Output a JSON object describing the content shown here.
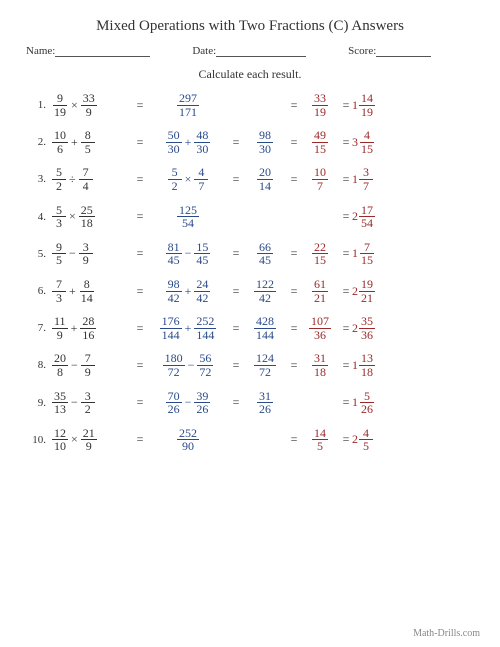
{
  "title": "Mixed Operations with Two Fractions (C) Answers",
  "meta": {
    "name_label": "Name:",
    "date_label": "Date:",
    "score_label": "Score:"
  },
  "instruction": "Calculate each result.",
  "footer": "Math-Drills.com",
  "colors": {
    "work": "#2a4a8a",
    "result": "#9a2a2a"
  },
  "problems": [
    {
      "a": {
        "n": "9",
        "d": "19"
      },
      "op": "×",
      "b": {
        "n": "33",
        "d": "9"
      },
      "w1": {
        "type": "single",
        "f": {
          "n": "297",
          "d": "171"
        }
      },
      "w2": null,
      "simp": {
        "n": "33",
        "d": "19"
      },
      "mix": {
        "w": "1",
        "n": "14",
        "d": "19"
      }
    },
    {
      "a": {
        "n": "10",
        "d": "6"
      },
      "op": "+",
      "b": {
        "n": "8",
        "d": "5"
      },
      "w1": {
        "type": "sum",
        "l": {
          "n": "50",
          "d": "30"
        },
        "op": "+",
        "r": {
          "n": "48",
          "d": "30"
        }
      },
      "w2": {
        "n": "98",
        "d": "30"
      },
      "simp": {
        "n": "49",
        "d": "15"
      },
      "mix": {
        "w": "3",
        "n": "4",
        "d": "15"
      }
    },
    {
      "a": {
        "n": "5",
        "d": "2"
      },
      "op": "÷",
      "b": {
        "n": "7",
        "d": "4"
      },
      "w1": {
        "type": "sum",
        "l": {
          "n": "5",
          "d": "2"
        },
        "op": "×",
        "r": {
          "n": "4",
          "d": "7"
        }
      },
      "w2": {
        "n": "20",
        "d": "14"
      },
      "simp": {
        "n": "10",
        "d": "7"
      },
      "mix": {
        "w": "1",
        "n": "3",
        "d": "7"
      }
    },
    {
      "a": {
        "n": "5",
        "d": "3"
      },
      "op": "×",
      "b": {
        "n": "25",
        "d": "18"
      },
      "w1": {
        "type": "single",
        "f": {
          "n": "125",
          "d": "54"
        }
      },
      "w2": null,
      "simp": null,
      "mix": {
        "w": "2",
        "n": "17",
        "d": "54"
      }
    },
    {
      "a": {
        "n": "9",
        "d": "5"
      },
      "op": "−",
      "b": {
        "n": "3",
        "d": "9"
      },
      "w1": {
        "type": "sum",
        "l": {
          "n": "81",
          "d": "45"
        },
        "op": "−",
        "r": {
          "n": "15",
          "d": "45"
        }
      },
      "w2": {
        "n": "66",
        "d": "45"
      },
      "simp": {
        "n": "22",
        "d": "15"
      },
      "mix": {
        "w": "1",
        "n": "7",
        "d": "15"
      }
    },
    {
      "a": {
        "n": "7",
        "d": "3"
      },
      "op": "+",
      "b": {
        "n": "8",
        "d": "14"
      },
      "w1": {
        "type": "sum",
        "l": {
          "n": "98",
          "d": "42"
        },
        "op": "+",
        "r": {
          "n": "24",
          "d": "42"
        }
      },
      "w2": {
        "n": "122",
        "d": "42"
      },
      "simp": {
        "n": "61",
        "d": "21"
      },
      "mix": {
        "w": "2",
        "n": "19",
        "d": "21"
      }
    },
    {
      "a": {
        "n": "11",
        "d": "9"
      },
      "op": "+",
      "b": {
        "n": "28",
        "d": "16"
      },
      "w1": {
        "type": "sum",
        "l": {
          "n": "176",
          "d": "144"
        },
        "op": "+",
        "r": {
          "n": "252",
          "d": "144"
        }
      },
      "w2": {
        "n": "428",
        "d": "144"
      },
      "simp": {
        "n": "107",
        "d": "36"
      },
      "mix": {
        "w": "2",
        "n": "35",
        "d": "36"
      }
    },
    {
      "a": {
        "n": "20",
        "d": "8"
      },
      "op": "−",
      "b": {
        "n": "7",
        "d": "9"
      },
      "w1": {
        "type": "sum",
        "l": {
          "n": "180",
          "d": "72"
        },
        "op": "−",
        "r": {
          "n": "56",
          "d": "72"
        }
      },
      "w2": {
        "n": "124",
        "d": "72"
      },
      "simp": {
        "n": "31",
        "d": "18"
      },
      "mix": {
        "w": "1",
        "n": "13",
        "d": "18"
      }
    },
    {
      "a": {
        "n": "35",
        "d": "13"
      },
      "op": "−",
      "b": {
        "n": "3",
        "d": "2"
      },
      "w1": {
        "type": "sum",
        "l": {
          "n": "70",
          "d": "26"
        },
        "op": "−",
        "r": {
          "n": "39",
          "d": "26"
        }
      },
      "w2": {
        "n": "31",
        "d": "26"
      },
      "simp": null,
      "mix": {
        "w": "1",
        "n": "5",
        "d": "26"
      }
    },
    {
      "a": {
        "n": "12",
        "d": "10"
      },
      "op": "×",
      "b": {
        "n": "21",
        "d": "9"
      },
      "w1": {
        "type": "single",
        "f": {
          "n": "252",
          "d": "90"
        }
      },
      "w2": null,
      "simp": {
        "n": "14",
        "d": "5"
      },
      "mix": {
        "w": "2",
        "n": "4",
        "d": "5"
      }
    }
  ]
}
